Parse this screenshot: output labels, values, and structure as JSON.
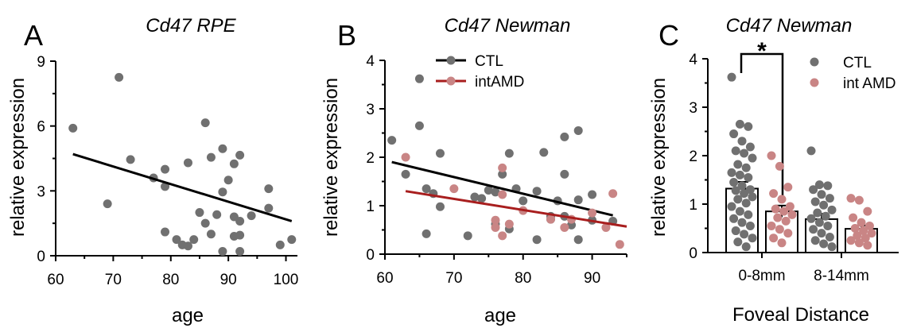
{
  "colors": {
    "ctl": "#707070",
    "amd": "#c98585",
    "ctl_line": "#000000",
    "amd_line": "#a81e1e"
  },
  "chart_data": [
    {
      "id": "A",
      "type": "scatter",
      "panel_letter": "A",
      "title": "Cd47 RPE",
      "xlabel": "age",
      "ylabel": "relative expression",
      "xlim": [
        60,
        102
      ],
      "ylim": [
        0,
        9
      ],
      "xticks": [
        "60",
        "70",
        "80",
        "90",
        "100"
      ],
      "yticks": [
        "0",
        "3",
        "6",
        "9"
      ],
      "series": [
        {
          "points": [
            [
              63,
              5.9
            ],
            [
              69,
              2.4
            ],
            [
              71,
              8.25
            ],
            [
              73,
              4.45
            ],
            [
              77,
              3.6
            ],
            [
              79,
              4.0
            ],
            [
              79,
              3.2
            ],
            [
              79,
              1.1
            ],
            [
              81,
              0.75
            ],
            [
              82,
              0.5
            ],
            [
              83,
              4.3
            ],
            [
              83,
              0.45
            ],
            [
              84,
              0.75
            ],
            [
              85,
              2.0
            ],
            [
              86,
              6.15
            ],
            [
              86,
              1.5
            ],
            [
              87,
              4.55
            ],
            [
              87,
              1.0
            ],
            [
              88,
              1.9
            ],
            [
              89,
              4.95
            ],
            [
              89,
              2.95
            ],
            [
              89,
              0.2
            ],
            [
              90,
              3.5
            ],
            [
              91,
              4.25
            ],
            [
              91,
              1.8
            ],
            [
              91,
              0.9
            ],
            [
              92,
              4.65
            ],
            [
              92,
              1.6
            ],
            [
              92,
              0.95
            ],
            [
              92,
              0.2
            ],
            [
              94,
              1.85
            ],
            [
              97,
              3.1
            ],
            [
              97,
              2.2
            ],
            [
              99,
              0.5
            ],
            [
              101,
              0.75
            ]
          ],
          "fit": [
            [
              63,
              4.7
            ],
            [
              101,
              1.6
            ]
          ]
        }
      ]
    },
    {
      "id": "B",
      "type": "scatter",
      "panel_letter": "B",
      "title": "Cd47 Newman",
      "xlabel": "age",
      "ylabel": "relative expression",
      "xlim": [
        60,
        95
      ],
      "ylim": [
        0,
        4
      ],
      "xticks": [
        "60",
        "70",
        "80",
        "90"
      ],
      "yticks": [
        "0",
        "1",
        "2",
        "3",
        "4"
      ],
      "series": [
        {
          "name": "CTL",
          "points": [
            [
              61,
              2.35
            ],
            [
              63,
              1.65
            ],
            [
              65,
              3.62
            ],
            [
              65,
              2.65
            ],
            [
              66,
              1.35
            ],
            [
              66,
              0.42
            ],
            [
              67,
              1.25
            ],
            [
              68,
              2.08
            ],
            [
              68,
              0.98
            ],
            [
              72,
              0.38
            ],
            [
              73,
              1.18
            ],
            [
              74,
              1.15
            ],
            [
              75,
              1.32
            ],
            [
              76,
              1.28
            ],
            [
              76,
              0.62
            ],
            [
              77,
              1.65
            ],
            [
              78,
              2.08
            ],
            [
              78,
              0.52
            ],
            [
              79,
              1.35
            ],
            [
              80,
              1.1
            ],
            [
              82,
              1.3
            ],
            [
              82,
              0.3
            ],
            [
              83,
              2.1
            ],
            [
              84,
              0.72
            ],
            [
              84,
              0.78
            ],
            [
              85,
              1.1
            ],
            [
              86,
              1.65
            ],
            [
              86,
              2.42
            ],
            [
              86,
              0.78
            ],
            [
              87,
              0.6
            ],
            [
              88,
              2.55
            ],
            [
              88,
              1.12
            ],
            [
              88,
              0.3
            ],
            [
              90,
              1.23
            ],
            [
              90,
              0.7
            ],
            [
              93,
              0.68
            ]
          ],
          "fit": [
            [
              61,
              1.9
            ],
            [
              93,
              0.8
            ]
          ]
        },
        {
          "name": "intAMD",
          "points": [
            [
              63,
              2.0
            ],
            [
              70,
              1.35
            ],
            [
              76,
              0.7
            ],
            [
              76,
              0.55
            ],
            [
              77,
              1.78
            ],
            [
              77,
              1.23
            ],
            [
              77,
              0.38
            ],
            [
              78,
              0.62
            ],
            [
              80,
              0.9
            ],
            [
              84,
              0.72
            ],
            [
              86,
              0.55
            ],
            [
              87,
              0.72
            ],
            [
              90,
              0.85
            ],
            [
              92,
              0.55
            ],
            [
              93,
              1.25
            ],
            [
              94,
              0.2
            ]
          ],
          "fit": [
            [
              63,
              1.3
            ],
            [
              95,
              0.57
            ]
          ]
        }
      ]
    },
    {
      "id": "C",
      "type": "bar",
      "panel_letter": "C",
      "title": "Cd47 Newman",
      "xlabel": "Foveal Distance",
      "ylabel": "relative expression",
      "categories": [
        "0-8mm",
        "8-14mm"
      ],
      "ylim": [
        0,
        4
      ],
      "yticks": [
        "0",
        "1",
        "2",
        "3",
        "4"
      ],
      "significance": "*",
      "series": [
        {
          "name": "CTL",
          "values": [
            1.32,
            0.69
          ],
          "sem": [
            0.14,
            0.11
          ],
          "points": [
            [
              3.62,
              2.65,
              2.6,
              2.45,
              2.3,
              2.18,
              2.1,
              2.05,
              1.95,
              1.82,
              1.75,
              1.65,
              1.6,
              1.55,
              1.45,
              1.38,
              1.3,
              1.28,
              1.22,
              1.15,
              1.1,
              1.02,
              0.95,
              0.85,
              0.78,
              0.7,
              0.62,
              0.55,
              0.45,
              0.38,
              0.3,
              0.22,
              0.12
            ],
            [
              2.1,
              1.4,
              1.38,
              1.3,
              1.2,
              1.12,
              1.05,
              0.98,
              0.88,
              0.82,
              0.75,
              0.7,
              0.62,
              0.55,
              0.48,
              0.4,
              0.32,
              0.25,
              0.18,
              0.12
            ]
          ]
        },
        {
          "name": "int AMD",
          "values": [
            0.85,
            0.49
          ],
          "sem": [
            0.12,
            0.07
          ],
          "points": [
            [
              2.0,
              1.78,
              1.35,
              1.22,
              1.1,
              0.95,
              0.9,
              0.85,
              0.78,
              0.72,
              0.65,
              0.55,
              0.48,
              0.4,
              0.3,
              0.2
            ],
            [
              1.12,
              1.08,
              0.85,
              0.72,
              0.62,
              0.55,
              0.5,
              0.45,
              0.4,
              0.35,
              0.3,
              0.25,
              0.2,
              0.15
            ]
          ]
        }
      ]
    }
  ]
}
